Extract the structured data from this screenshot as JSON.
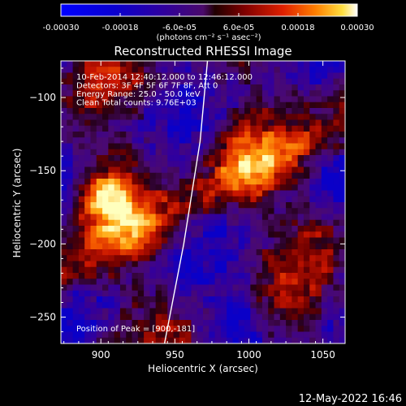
{
  "chart_data": {
    "type": "heatmap",
    "title": "Reconstructed RHESSI Image",
    "xlabel": "Heliocentric X (arcsec)",
    "ylabel": "Heliocentric Y (arcsec)",
    "xlim": [
      873,
      1065
    ],
    "ylim": [
      -268,
      -75
    ],
    "xticks": [
      900,
      950,
      1000,
      1050
    ],
    "yticks": [
      -100,
      -150,
      -200,
      -250
    ],
    "colorbar": {
      "min": -0.0003,
      "max": 0.0003,
      "ticks": [
        "-0.00030",
        "-0.00018",
        "-6.0e-05",
        "6.0e-05",
        "0.00018",
        "0.00030"
      ],
      "units_label": "(photons cm⁻² s⁻¹ asec⁻²)"
    },
    "annotations": [
      "10-Feb-2014 12:40:12.000 to 12:46:12.000",
      "Detectors: 3F 4F 5F 6F 7F 8F, Att 0",
      "Energy Range: 25.0 - 50.0 keV",
      "Clean    Total counts: 9.76E+03"
    ],
    "peak_label": "Position of Peak = [900,-181]",
    "peak": {
      "x": 900,
      "y": -181
    },
    "limb_arc": [
      [
        943,
        -268
      ],
      [
        956,
        -200
      ],
      [
        967,
        -130
      ],
      [
        972,
        -75
      ]
    ],
    "footer_date": "12-May-2022 16:46"
  }
}
